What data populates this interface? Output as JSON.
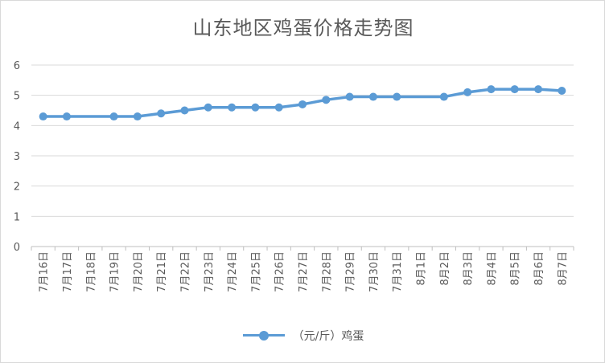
{
  "chart_data": {
    "type": "line",
    "title": "山东地区鸡蛋价格走势图",
    "xlabel": "",
    "ylabel": "",
    "ylim": [
      0,
      6
    ],
    "yticks": [
      "0",
      "1",
      "2",
      "3",
      "4",
      "5",
      "6"
    ],
    "grid": true,
    "legend_position": "bottom",
    "categories": [
      "7月16日",
      "7月17日",
      "7月18日",
      "7月19日",
      "7月20日",
      "7月21日",
      "7月22日",
      "7月23日",
      "7月24日",
      "7月25日",
      "7月26日",
      "7月27日",
      "7月28日",
      "7月29日",
      "7月30日",
      "7月31日",
      "8月1日",
      "8月2日",
      "8月3日",
      "8月4日",
      "8月5日",
      "8月6日",
      "8月7日"
    ],
    "series": [
      {
        "name": "（元/斤）鸡蛋",
        "color": "#5b9bd5",
        "values": [
          4.3,
          4.3,
          null,
          4.3,
          4.3,
          4.4,
          4.5,
          4.6,
          4.6,
          4.6,
          4.6,
          4.7,
          4.85,
          4.95,
          4.95,
          4.95,
          null,
          4.95,
          5.1,
          5.2,
          5.2,
          5.2,
          5.15
        ]
      }
    ]
  }
}
